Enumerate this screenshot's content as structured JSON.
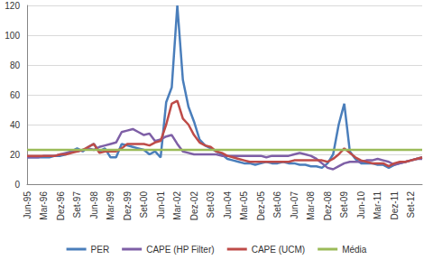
{
  "chart_data": {
    "type": "line",
    "categories": [
      "Jun-95",
      null,
      null,
      "Mar-96",
      null,
      null,
      "Dez-96",
      null,
      null,
      "Set-97",
      null,
      null,
      "Jun-98",
      null,
      null,
      "Mar-99",
      null,
      null,
      "Dez-99",
      null,
      null,
      "Set-00",
      null,
      null,
      "Jun-01",
      null,
      null,
      "Mar-02",
      null,
      null,
      "Dez-02",
      null,
      null,
      "Set-03",
      null,
      null,
      "Jun-04",
      null,
      null,
      "Mar-05",
      null,
      null,
      "Dez-05",
      null,
      null,
      "Set-06",
      null,
      null,
      "Jun-07",
      null,
      null,
      "Mar-08",
      null,
      null,
      "Dez-08",
      null,
      null,
      "Set-09",
      null,
      null,
      "Jun-10",
      null,
      null,
      "Mar-11",
      null,
      null,
      "Dez-11",
      null,
      null,
      "Set-12",
      null,
      null
    ],
    "series": [
      {
        "name": "PER",
        "color": "#4a7ebb",
        "values": [
          18,
          18,
          18,
          18,
          18,
          19,
          19,
          20,
          22,
          24,
          22,
          25,
          27,
          22,
          24,
          18,
          18,
          27,
          26,
          25,
          24,
          23,
          20,
          22,
          18,
          55,
          65,
          120,
          70,
          52,
          42,
          30,
          26,
          24,
          22,
          20,
          17,
          16,
          15,
          14,
          14,
          13,
          14,
          15,
          14,
          14,
          15,
          14,
          14,
          13,
          13,
          12,
          12,
          11,
          14,
          20,
          40,
          54,
          22,
          17,
          14,
          14,
          14,
          13,
          13,
          11,
          13,
          14,
          15,
          16,
          17,
          18
        ]
      },
      {
        "name": "CAPE (HP Filter)",
        "color": "#7e5fa6",
        "values": [
          18,
          18,
          18,
          19,
          19,
          19,
          20,
          21,
          22,
          22,
          23,
          24,
          23,
          25,
          26,
          27,
          28,
          35,
          36,
          37,
          35,
          33,
          34,
          29,
          30,
          32,
          33,
          27,
          22,
          21,
          20,
          20,
          20,
          20,
          20,
          19,
          19,
          19,
          19,
          19,
          19,
          19,
          19,
          18,
          19,
          19,
          19,
          19,
          20,
          21,
          20,
          19,
          17,
          14,
          11,
          10,
          12,
          14,
          15,
          15,
          15,
          16,
          16,
          17,
          16,
          15,
          13,
          14,
          15,
          16,
          17,
          17
        ]
      },
      {
        "name": "CAPE (UCM)",
        "color": "#be4b48",
        "values": [
          19,
          19,
          19,
          19,
          19,
          19,
          20,
          20,
          21,
          22,
          23,
          25,
          27,
          21,
          22,
          22,
          22,
          24,
          27,
          27,
          27,
          27,
          26,
          28,
          29,
          40,
          54,
          56,
          44,
          40,
          33,
          28,
          26,
          25,
          22,
          21,
          19,
          18,
          17,
          16,
          15,
          15,
          15,
          15,
          15,
          15,
          15,
          15,
          16,
          16,
          16,
          16,
          16,
          16,
          15,
          17,
          20,
          24,
          21,
          18,
          16,
          15,
          14,
          14,
          14,
          12,
          14,
          15,
          15,
          16,
          17,
          18
        ]
      },
      {
        "name": "Média",
        "color": "#9bbb59",
        "values": [
          23,
          23,
          23,
          23,
          23,
          23,
          23,
          23,
          23,
          23,
          23,
          23,
          23,
          23,
          23,
          23,
          23,
          23,
          23,
          23,
          23,
          23,
          23,
          23,
          23,
          23,
          23,
          23,
          23,
          23,
          23,
          23,
          23,
          23,
          23,
          23,
          23,
          23,
          23,
          23,
          23,
          23,
          23,
          23,
          23,
          23,
          23,
          23,
          23,
          23,
          23,
          23,
          23,
          23,
          23,
          23,
          23,
          23,
          23,
          23,
          23,
          23,
          23,
          23,
          23,
          23,
          23,
          23,
          23,
          23,
          23,
          23
        ]
      }
    ],
    "ylim": [
      0,
      120
    ],
    "yticks": [
      0,
      20,
      40,
      60,
      80,
      100,
      120
    ],
    "grid": true,
    "legend": "bottom"
  }
}
